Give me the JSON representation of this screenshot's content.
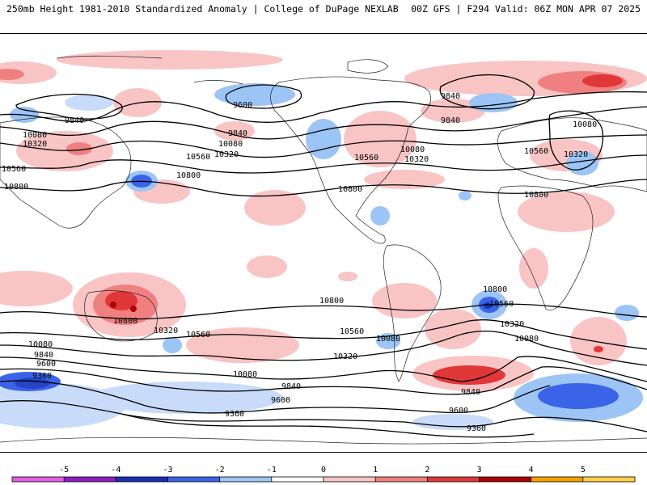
{
  "header": {
    "left_title": "250mb Height 1981-2010 Standardized Anomaly | College of DuPage NEXLAB",
    "right_title": "00Z GFS | F294 Valid: 06Z MON APR 07 2025"
  },
  "colorbar": {
    "ticks": [
      "-5",
      "-4",
      "-3",
      "-2",
      "-1",
      "0",
      "1",
      "2",
      "3",
      "4",
      "5"
    ],
    "colors": [
      "#e060e0",
      "#8a1fbf",
      "#1a2fb0",
      "#3a64e8",
      "#9cc4f5",
      "#ffffff",
      "#f9c4c4",
      "#f08080",
      "#e03838",
      "#b00000",
      "#f5a000",
      "#ffd24a"
    ]
  },
  "contour_labels": {
    "l0": "10080",
    "l1": "10320",
    "l2": "10560",
    "l3": "10800",
    "l4": "9840",
    "l5": "9600",
    "l6": "9840",
    "l7": "10080",
    "l8": "10320",
    "l9": "10560",
    "l10": "10800",
    "l11": "10560",
    "l12": "10080",
    "l13": "10320",
    "l14": "10800",
    "l15": "9840",
    "l16": "9840",
    "l17": "10080",
    "l18": "10560",
    "l19": "10320",
    "l20": "10800",
    "l21": "10800",
    "l22": "10800",
    "l23": "10320",
    "l24": "10560",
    "l25": "10080",
    "l26": "9840",
    "l27": "9600",
    "l28": "9360",
    "l29": "10080",
    "l30": "9840",
    "l31": "9600",
    "l32": "9360",
    "l33": "10560",
    "l34": "10080",
    "l35": "10320",
    "l36": "10800",
    "l37": "10560",
    "l38": "10320",
    "l39": "10080",
    "l40": "9840",
    "l41": "9600",
    "l42": "9360"
  }
}
